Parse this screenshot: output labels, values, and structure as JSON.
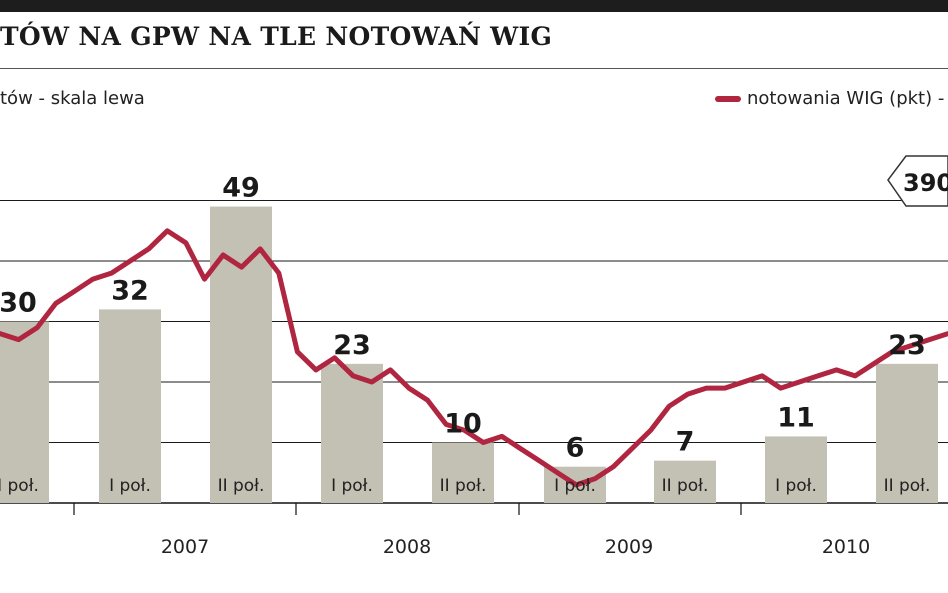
{
  "title": "TÓW NA GPW NA TLE NOTOWAŃ WIG",
  "legend": {
    "bars_label": "tów - skala lewa",
    "line_label": "notowania WIG (pkt) -"
  },
  "callout": "390",
  "colors": {
    "bar": "#c3c0b4",
    "line": "#b0253f",
    "grid": "#1a1a1a"
  },
  "chart_data": {
    "type": "bar",
    "categories": [
      "I poł.",
      "I poł.",
      "II poł.",
      "I poł.",
      "II poł.",
      "I poł.",
      "II poł.",
      "I poł.",
      "II poł."
    ],
    "years": [
      "2007",
      "2008",
      "2009",
      "2010"
    ],
    "values": [
      30,
      32,
      49,
      23,
      10,
      6,
      7,
      11,
      23
    ],
    "ylim": [
      0,
      60
    ],
    "grid": true,
    "line_series": {
      "y": [
        28,
        27,
        29,
        33,
        35,
        37,
        38,
        40,
        42,
        45,
        43,
        37,
        41,
        39,
        42,
        38,
        25,
        22,
        24,
        21,
        20,
        22,
        19,
        17,
        13,
        12,
        10,
        11,
        9,
        7,
        5,
        3,
        4,
        6,
        9,
        12,
        16,
        18,
        19,
        19,
        20,
        21,
        19,
        20,
        21,
        22,
        21,
        23,
        25,
        26,
        27,
        28
      ]
    }
  }
}
